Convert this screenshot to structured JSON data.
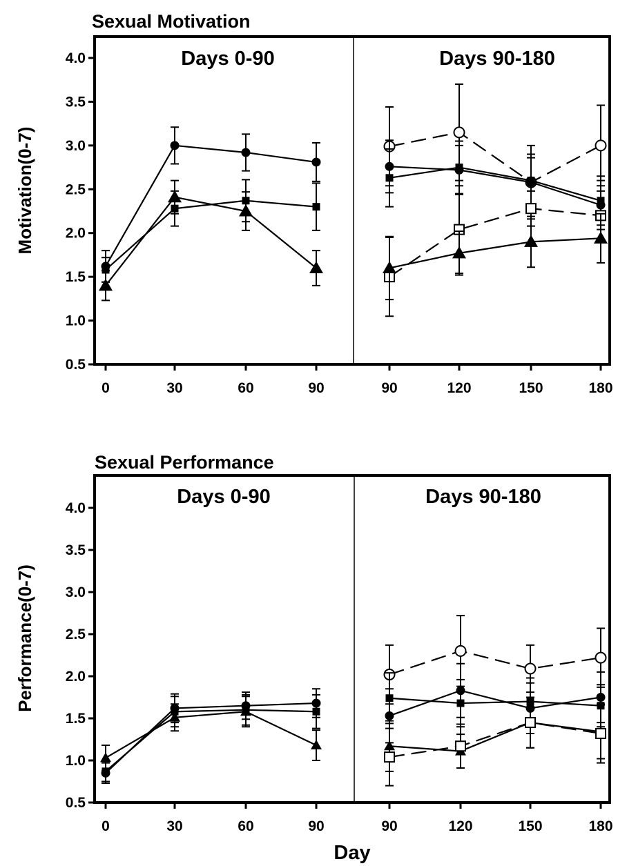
{
  "xlabel": "Day",
  "chart_data": [
    {
      "type": "line",
      "title": "Sexual Motivation",
      "ylabel": "Motivation(0-7)",
      "ylim": [
        0.5,
        4.0
      ],
      "yticks": [
        "0.5",
        "1.0",
        "1.5",
        "2.0",
        "2.5",
        "3.0",
        "3.5",
        "4.0"
      ],
      "grid": false,
      "regions": [
        {
          "title": "Days 0-90",
          "x": [
            0,
            30,
            60,
            90
          ],
          "series": [
            {
              "marker": "filled-circle",
              "dash": false,
              "values": [
                1.62,
                3.0,
                2.92,
                2.81
              ],
              "err": [
                0.18,
                0.21,
                0.21,
                0.22
              ]
            },
            {
              "marker": "filled-square",
              "dash": false,
              "values": [
                1.58,
                2.28,
                2.37,
                2.3
              ],
              "err": [
                0.14,
                0.2,
                0.24,
                0.27
              ]
            },
            {
              "marker": "filled-triangle",
              "dash": false,
              "values": [
                1.4,
                2.41,
                2.25,
                1.6
              ],
              "err": [
                0.17,
                0.19,
                0.22,
                0.2
              ]
            }
          ]
        },
        {
          "title": "Days 90-180",
          "x": [
            90,
            120,
            150,
            180
          ],
          "series": [
            {
              "marker": "open-circle",
              "dash": true,
              "values": [
                2.99,
                3.15,
                2.58,
                3.0
              ],
              "err": [
                0.45,
                0.55,
                0.42,
                0.46
              ]
            },
            {
              "marker": "filled-circle",
              "dash": false,
              "values": [
                2.76,
                2.72,
                2.58,
                2.32
              ],
              "err": [
                0.3,
                0.28,
                0.28,
                0.28
              ]
            },
            {
              "marker": "filled-square",
              "dash": false,
              "values": [
                2.63,
                2.75,
                2.6,
                2.37
              ],
              "err": [
                0.33,
                0.3,
                0.3,
                0.28
              ]
            },
            {
              "marker": "open-square",
              "dash": true,
              "values": [
                1.5,
                2.04,
                2.28,
                2.2
              ],
              "err": [
                0.45,
                0.5,
                0.2,
                0.28
              ]
            },
            {
              "marker": "filled-triangle",
              "dash": false,
              "values": [
                1.6,
                1.77,
                1.9,
                1.94
              ],
              "err": [
                0.36,
                0.25,
                0.29,
                0.28
              ]
            }
          ]
        }
      ]
    },
    {
      "type": "line",
      "title": "Sexual Performance",
      "ylabel": "Performance(0-7)",
      "ylim": [
        0.5,
        4.0
      ],
      "yticks": [
        "0.5",
        "1.0",
        "1.5",
        "2.0",
        "2.5",
        "3.0",
        "3.5",
        "4.0"
      ],
      "grid": false,
      "regions": [
        {
          "title": "Days 0-90",
          "x": [
            0,
            30,
            60,
            90
          ],
          "series": [
            {
              "marker": "filled-circle",
              "dash": false,
              "values": [
                0.85,
                1.62,
                1.65,
                1.68
              ],
              "err": [
                0.12,
                0.17,
                0.16,
                0.17
              ]
            },
            {
              "marker": "filled-square",
              "dash": false,
              "values": [
                0.87,
                1.58,
                1.6,
                1.58
              ],
              "err": [
                0.12,
                0.18,
                0.18,
                0.2
              ]
            },
            {
              "marker": "filled-triangle",
              "dash": false,
              "values": [
                1.03,
                1.51,
                1.58,
                1.18
              ],
              "err": [
                0.15,
                0.16,
                0.18,
                0.18
              ]
            }
          ]
        },
        {
          "title": "Days 90-180",
          "x": [
            90,
            120,
            150,
            180
          ],
          "series": [
            {
              "marker": "open-circle",
              "dash": true,
              "values": [
                2.02,
                2.3,
                2.09,
                2.22
              ],
              "err": [
                0.35,
                0.42,
                0.28,
                0.35
              ]
            },
            {
              "marker": "filled-square",
              "dash": false,
              "values": [
                1.74,
                1.68,
                1.7,
                1.65
              ],
              "err": [
                0.3,
                0.28,
                0.28,
                0.25
              ]
            },
            {
              "marker": "filled-circle",
              "dash": false,
              "values": [
                1.53,
                1.83,
                1.62,
                1.75
              ],
              "err": [
                0.32,
                0.32,
                0.3,
                0.3
              ]
            },
            {
              "marker": "filled-triangle",
              "dash": false,
              "values": [
                1.17,
                1.11,
                1.45,
                1.34
              ],
              "err": [
                0.3,
                0.2,
                0.3,
                0.32
              ]
            },
            {
              "marker": "open-square",
              "dash": true,
              "values": [
                1.04,
                1.17,
                1.45,
                1.32
              ],
              "err": [
                0.34,
                0.26,
                0.3,
                0.35
              ]
            }
          ]
        }
      ]
    }
  ]
}
